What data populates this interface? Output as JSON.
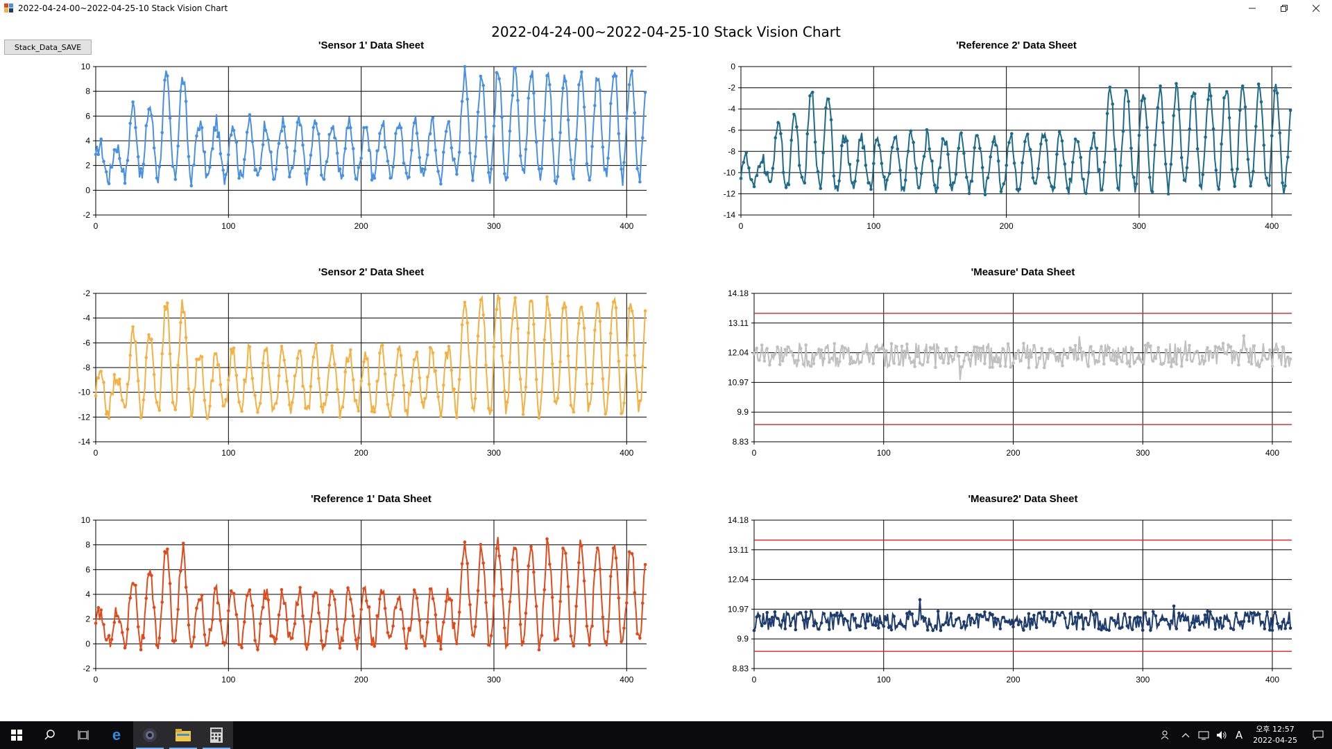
{
  "window": {
    "title": "2022-04-24-00~2022-04-25-10 Stack Vision Chart",
    "controls": [
      "minimize-icon",
      "restore-icon",
      "close-icon"
    ]
  },
  "toolbar": {
    "save_label": "Stack_Data_SAVE"
  },
  "main_title": "2022-04-24-00~2022-04-25-10 Stack Vision Chart",
  "taskbar": {
    "icons": [
      "windows-start-icon",
      "search-icon",
      "task-view-icon",
      "edge-icon",
      "camera-app-icon",
      "file-explorer-icon",
      "calculator-icon"
    ],
    "tray_icons": [
      "people-icon",
      "chevron-up-icon",
      "network-icon",
      "volume-icon",
      "ime-icon",
      "notification-icon"
    ],
    "ime_label": "A",
    "time": "오후 12:57",
    "date": "2022-04-25"
  },
  "chart_data": [
    {
      "type": "line",
      "title": "'Sensor 1' Data Sheet",
      "series": [
        {
          "color": "#4a90e2",
          "profile": "A",
          "base": 1,
          "amplitude": 4.5,
          "n": 415
        }
      ],
      "xticks": [
        0,
        100,
        200,
        300,
        400
      ],
      "yticks": [
        10,
        8,
        6,
        4,
        2,
        0,
        -2
      ],
      "xlim": [
        0,
        415
      ],
      "ylim": [
        -2,
        10
      ],
      "grid": true
    },
    {
      "type": "line",
      "title": "'Reference 2' Data Sheet",
      "series": [
        {
          "color": "#1d6a8a",
          "profile": "A",
          "base": -11.5,
          "amplitude": 5,
          "n": 415
        }
      ],
      "xticks": [
        0,
        100,
        200,
        300,
        400
      ],
      "yticks": [
        0,
        -2,
        -4,
        -6,
        -8,
        -10,
        -12,
        -14
      ],
      "xlim": [
        0,
        415
      ],
      "ylim": [
        -14,
        0
      ],
      "grid": true
    },
    {
      "type": "line",
      "title": "'Sensor 2' Data Sheet",
      "series": [
        {
          "color": "#f4b040",
          "profile": "A",
          "base": -11.5,
          "amplitude": 4.8,
          "n": 415
        }
      ],
      "xticks": [
        0,
        100,
        200,
        300,
        400
      ],
      "yticks": [
        -2,
        -4,
        -6,
        -8,
        -10,
        -12,
        -14
      ],
      "xlim": [
        0,
        415
      ],
      "ylim": [
        -14,
        -2
      ],
      "grid": true
    },
    {
      "type": "line",
      "title": "'Measure' Data Sheet",
      "series": [
        {
          "color": "#c0c0c0",
          "profile": "noise",
          "center": 11.95,
          "spread": 0.45,
          "n": 415
        }
      ],
      "limits": [
        {
          "value": 13.46,
          "color": "#e02020"
        },
        {
          "value": 9.45,
          "color": "#e02020"
        }
      ],
      "xticks": [
        0,
        100,
        200,
        300,
        400
      ],
      "yticks": [
        "14.18",
        "13.11",
        "12.04",
        "10.97",
        "9.9",
        "8.83"
      ],
      "xlim": [
        0,
        415
      ],
      "ylim": [
        8.83,
        14.18
      ],
      "grid": true
    },
    {
      "type": "line",
      "title": "'Reference 1' Data Sheet",
      "series": [
        {
          "color": "#e04a1a",
          "profile": "A",
          "base": 0,
          "amplitude": 4.2,
          "n": 415
        }
      ],
      "xticks": [
        0,
        100,
        200,
        300,
        400
      ],
      "yticks": [
        10,
        8,
        6,
        4,
        2,
        0,
        -2
      ],
      "xlim": [
        0,
        415
      ],
      "ylim": [
        -2,
        10
      ],
      "grid": true
    },
    {
      "type": "line",
      "title": "'Measure2' Data Sheet",
      "series": [
        {
          "color": "#1e3b6e",
          "profile": "noise",
          "center": 10.55,
          "spread": 0.35,
          "n": 415
        }
      ],
      "limits": [
        {
          "value": 13.46,
          "color": "#e02020"
        },
        {
          "value": 9.45,
          "color": "#e02020"
        }
      ],
      "xticks": [
        0,
        100,
        200,
        300,
        400
      ],
      "yticks": [
        "14.18",
        "13.11",
        "12.04",
        "10.97",
        "9.9",
        "8.83"
      ],
      "xlim": [
        0,
        415
      ],
      "ylim": [
        8.83,
        14.18
      ],
      "grid": true
    }
  ]
}
